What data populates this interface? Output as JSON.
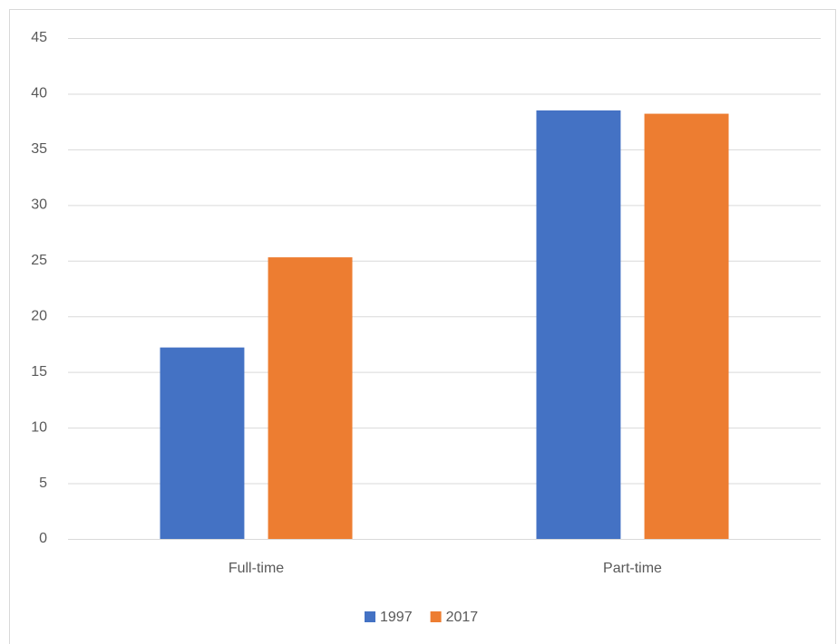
{
  "chart_data": {
    "type": "bar",
    "categories": [
      "Full-time",
      "Part-time"
    ],
    "series": [
      {
        "name": "1997",
        "color": "#4472c4",
        "values": [
          17.2,
          38.5
        ]
      },
      {
        "name": "2017",
        "color": "#ed7d31",
        "values": [
          25.3,
          38.2
        ]
      }
    ],
    "ylim": [
      0,
      45
    ],
    "yticks": [
      0,
      5,
      10,
      15,
      20,
      25,
      30,
      35,
      40,
      45
    ],
    "grid": true,
    "legend": "bottom"
  }
}
